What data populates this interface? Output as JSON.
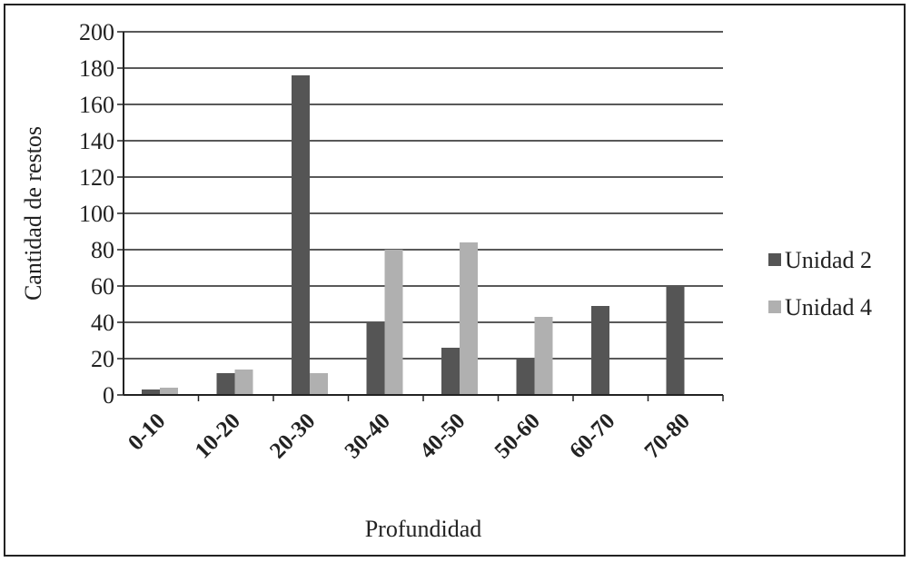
{
  "chart_data": {
    "type": "bar",
    "categories": [
      "0-10",
      "10-20",
      "20-30",
      "30-40",
      "40-50",
      "50-60",
      "60-70",
      "70-80"
    ],
    "series": [
      {
        "name": "Unidad 2",
        "values": [
          3,
          12,
          176,
          40,
          26,
          20,
          49,
          60
        ],
        "color": "#555555"
      },
      {
        "name": "Unidad 4",
        "values": [
          4,
          14,
          12,
          80,
          84,
          43,
          0,
          0
        ],
        "color": "#b0b0b0"
      }
    ],
    "title": "",
    "xlabel": "Profundidad",
    "ylabel": "Cantidad de restos",
    "ylim": [
      0,
      200
    ],
    "yticks": [
      0,
      20,
      40,
      60,
      80,
      100,
      120,
      140,
      160,
      180,
      200
    ],
    "grid": true,
    "legend": "right"
  }
}
